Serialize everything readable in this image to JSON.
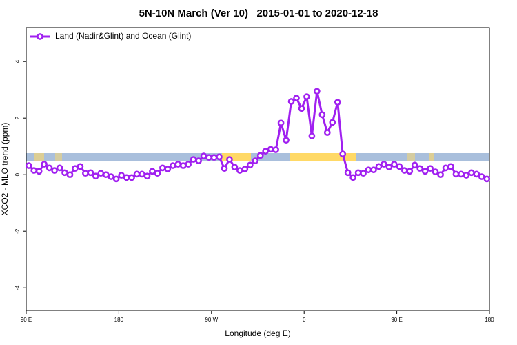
{
  "chart_data": {
    "type": "line",
    "title": "5N-10N March (Ver 10)   2015-01-01 to 2020-12-18",
    "x_label": "Longitude (deg E)",
    "y_label": "XCO2 - MLO trend (ppm)",
    "x": [
      92.5,
      97.5,
      102.5,
      107.5,
      112.5,
      117.5,
      122.5,
      127.5,
      132.5,
      137.5,
      142.5,
      147.5,
      152.5,
      157.5,
      162.5,
      167.5,
      172.5,
      177.5,
      182.5,
      187.5,
      192.5,
      197.5,
      202.5,
      207.5,
      212.5,
      217.5,
      222.5,
      227.5,
      232.5,
      237.5,
      242.5,
      247.5,
      252.5,
      257.5,
      262.5,
      267.5,
      272.5,
      277.5,
      282.5,
      287.5,
      292.5,
      297.5,
      302.5,
      307.5,
      312.5,
      317.5,
      322.5,
      327.5,
      332.5,
      337.5,
      342.5,
      347.5,
      352.5,
      357.5,
      362.5,
      367.5,
      372.5,
      377.5,
      382.5,
      387.5,
      392.5,
      397.5,
      402.5,
      407.5,
      412.5,
      417.5,
      422.5,
      427.5,
      432.5,
      437.5,
      442.5,
      447.5,
      452.5,
      457.5,
      462.5,
      467.5,
      472.5,
      477.5,
      482.5,
      487.5,
      492.5,
      497.5,
      502.5,
      507.5,
      512.5,
      517.5,
      522.5,
      527.5,
      532.5,
      537.5
    ],
    "series": [
      {
        "name": "Land (Nadir&Glint) and Ocean (Glint)",
        "color": "#a020f0",
        "values": [
          0.32,
          0.15,
          0.12,
          0.37,
          0.24,
          0.15,
          0.24,
          0.07,
          0.0,
          0.22,
          0.29,
          0.05,
          0.07,
          -0.05,
          0.05,
          0.0,
          -0.07,
          -0.15,
          -0.02,
          -0.1,
          -0.1,
          0.02,
          0.02,
          -0.05,
          0.12,
          0.05,
          0.24,
          0.2,
          0.32,
          0.37,
          0.32,
          0.37,
          0.54,
          0.49,
          0.66,
          0.61,
          0.61,
          0.63,
          0.22,
          0.54,
          0.27,
          0.15,
          0.2,
          0.34,
          0.49,
          0.68,
          0.83,
          0.9,
          0.88,
          1.83,
          1.22,
          2.59,
          2.71,
          2.34,
          2.76,
          1.37,
          2.95,
          2.12,
          1.49,
          1.85,
          2.56,
          0.73,
          0.07,
          -0.1,
          0.07,
          0.05,
          0.17,
          0.17,
          0.29,
          0.37,
          0.27,
          0.37,
          0.29,
          0.15,
          0.12,
          0.34,
          0.22,
          0.12,
          0.22,
          0.1,
          0.0,
          0.24,
          0.29,
          0.02,
          0.02,
          -0.02,
          0.07,
          0.02,
          -0.07,
          -0.15
        ]
      }
    ],
    "xlim": [
      90,
      540
    ],
    "xticks": [
      {
        "value": 90,
        "label": "90 E"
      },
      {
        "value": 180,
        "label": "180"
      },
      {
        "value": 270,
        "label": "90 W"
      },
      {
        "value": 360,
        "label": "0"
      },
      {
        "value": 450,
        "label": "90 E"
      },
      {
        "value": 540,
        "label": "180"
      }
    ],
    "ylim": [
      -4.8,
      5.2
    ],
    "yticks": [
      -4,
      -2,
      0,
      2,
      4
    ],
    "legend": "top-left"
  }
}
